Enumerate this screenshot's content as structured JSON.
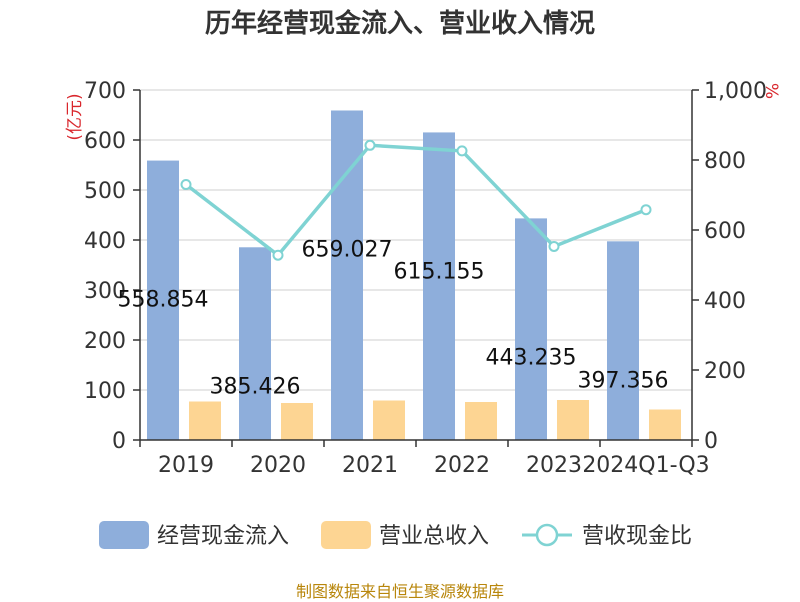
{
  "chart_data": {
    "type": "bar",
    "title": "历年经营现金流入、营业收入情况",
    "categories": [
      "2019",
      "2020",
      "2021",
      "2022",
      "2023",
      "2024Q1-Q3"
    ],
    "series": [
      {
        "name": "经营现金流入",
        "type": "bar",
        "axis": "left",
        "color": "#8eaedb",
        "values": [
          558.854,
          385.426,
          659.027,
          615.155,
          443.235,
          397.356
        ],
        "labels": [
          "558.854",
          "385.426",
          "659.027",
          "615.155",
          "443.235",
          "397.356"
        ]
      },
      {
        "name": "营业总收入",
        "type": "bar",
        "axis": "left",
        "color": "#fdd593",
        "values": [
          77,
          74,
          79,
          76,
          80,
          61
        ]
      },
      {
        "name": "营收现金比",
        "type": "line",
        "axis": "right",
        "color": "#7fd3d3",
        "values": [
          730,
          528,
          842,
          826,
          553,
          658
        ]
      }
    ],
    "y_left": {
      "unit": "(亿元)",
      "ylim": [
        0,
        700
      ],
      "ticks": [
        0,
        100,
        200,
        300,
        400,
        500,
        600,
        700
      ],
      "tick_labels": [
        "0",
        "100",
        "200",
        "300",
        "400",
        "500",
        "600",
        "700"
      ]
    },
    "y_right": {
      "unit": "%",
      "ylim": [
        0,
        1000
      ],
      "ticks": [
        0,
        200,
        400,
        600,
        800,
        1000
      ],
      "tick_labels": [
        "0",
        "200",
        "400",
        "600",
        "800",
        "1,000"
      ]
    },
    "grid": true,
    "legend_position": "bottom"
  },
  "footer": {
    "source": "制图数据来自恒生聚源数据库"
  }
}
